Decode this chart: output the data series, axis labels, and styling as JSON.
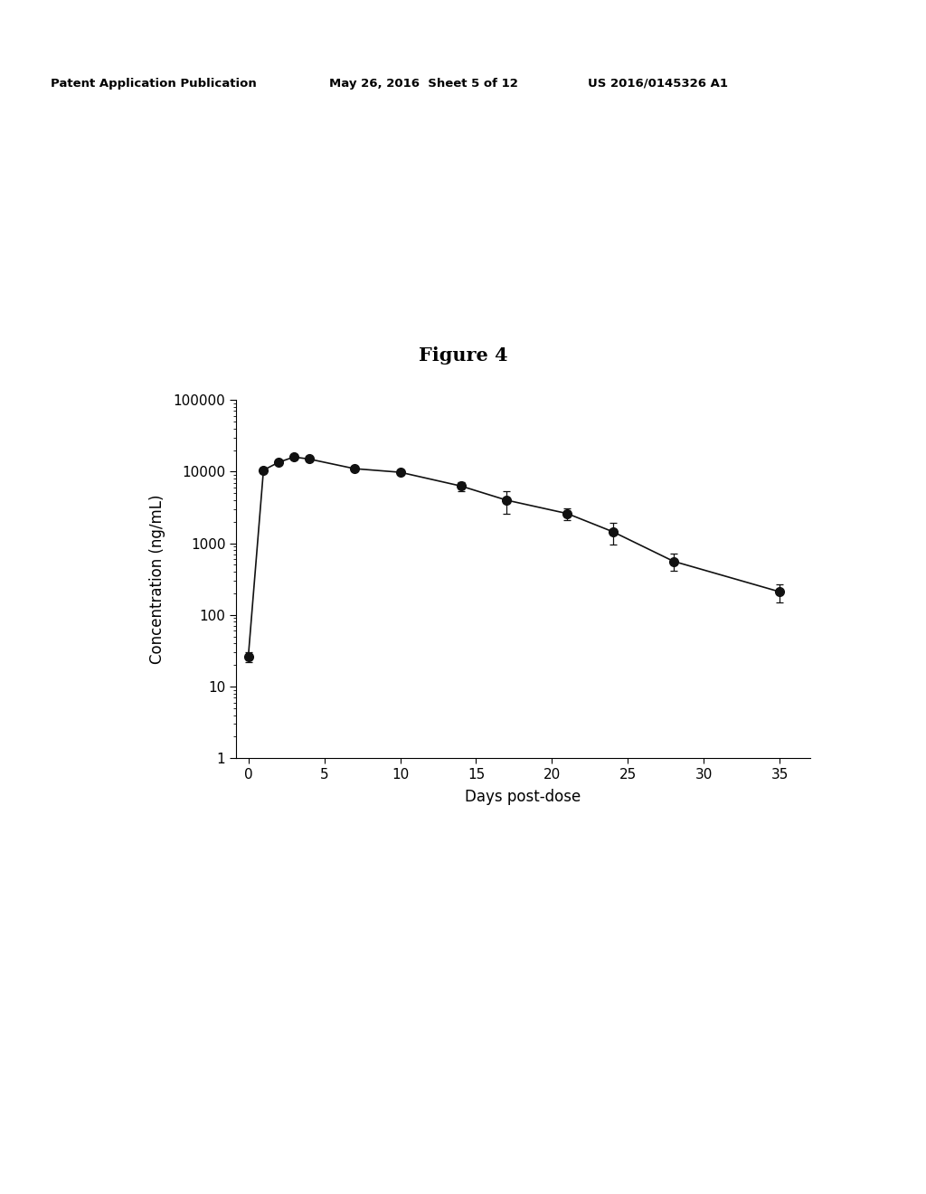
{
  "title": "Figure 4",
  "xlabel": "Days post-dose",
  "ylabel": "Concentration (ng/mL)",
  "header_left": "Patent Application Publication",
  "header_mid": "May 26, 2016  Sheet 5 of 12",
  "header_right": "US 2016/0145326 A1",
  "x": [
    0.0,
    1.0,
    2.0,
    3.0,
    4.0,
    7.0,
    10.0,
    14.0,
    17.0,
    21.0,
    24.0,
    28.0,
    35.0
  ],
  "y": [
    26,
    10500,
    13500,
    16000,
    15000,
    11000,
    9800,
    6300,
    4000,
    2600,
    1450,
    560,
    210
  ],
  "yerr_low": [
    4,
    700,
    800,
    900,
    1000,
    600,
    400,
    900,
    1400,
    500,
    500,
    150,
    60
  ],
  "yerr_high": [
    4,
    700,
    800,
    900,
    1000,
    600,
    400,
    900,
    1400,
    500,
    500,
    150,
    60
  ],
  "ylim_log": [
    1,
    100000
  ],
  "xlim": [
    -0.8,
    37
  ],
  "xticks": [
    0,
    5,
    10,
    15,
    20,
    25,
    30,
    35
  ],
  "yticks_log": [
    1,
    10,
    100,
    1000,
    10000,
    100000
  ],
  "line_color": "#111111",
  "marker_color": "#111111",
  "marker_size": 7,
  "line_width": 1.2,
  "capsize": 3,
  "background_color": "#ffffff",
  "title_fontsize": 15,
  "axis_label_fontsize": 12,
  "tick_label_fontsize": 11,
  "header_fontsize": 9.5
}
